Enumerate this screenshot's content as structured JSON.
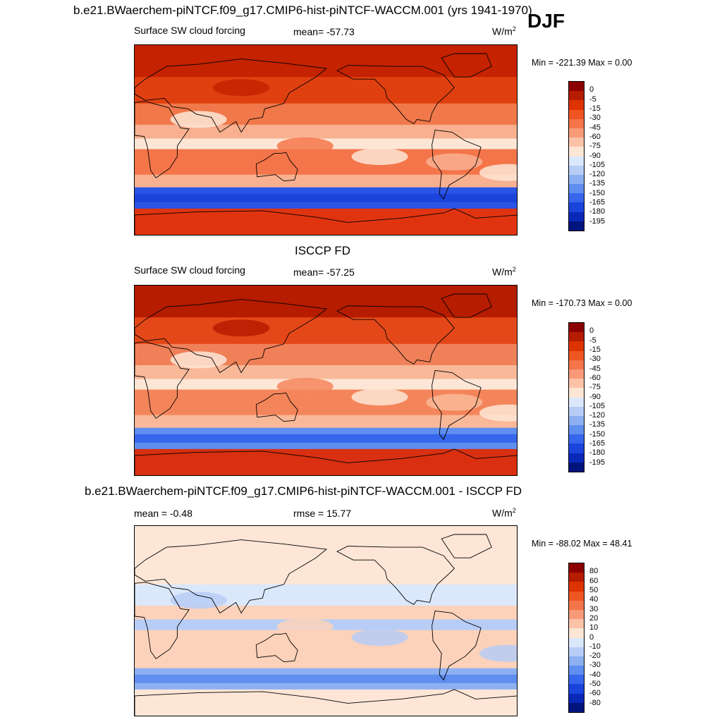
{
  "header": {
    "title": "b.e21.BWaerchem-piNTCF.f09_g17.CMIP6-hist-piNTCF-WACCM.001 (yrs 1941-1970)",
    "season": "DJF"
  },
  "panels": [
    {
      "id": "model",
      "title": "",
      "left_text": "Surface SW cloud forcing",
      "center_text": "mean= -57.73",
      "units": "W/m",
      "units_sup": "2",
      "minmax": "Min = -221.39 Max =   0.00",
      "colorbar": {
        "labels": [
          "0",
          "-5",
          "-15",
          "-30",
          "-45",
          "-60",
          "-75",
          "-90",
          "-105",
          "-120",
          "-135",
          "-150",
          "-165",
          "-180",
          "-195"
        ],
        "colors": [
          "#8b0000",
          "#b51c00",
          "#dd3300",
          "#ee5522",
          "#f4754a",
          "#f89a78",
          "#fcc2a8",
          "#fde6d6",
          "#dbe8fb",
          "#b7cdf6",
          "#8db0f2",
          "#5f8ef0",
          "#3666ec",
          "#1a44dc",
          "#0a28b8",
          "#00147e"
        ]
      },
      "shading": {
        "polar_north": "#c42200",
        "nh_mid": "#e04010",
        "subtrop": "#f0784a",
        "tropics": "#f8b090",
        "itcz": "#fde6d6",
        "sh_sub": "#f4754a",
        "so_band": "#2a55e6",
        "so_core": "#1a44dc",
        "antarctic": "#e03410"
      }
    },
    {
      "id": "obs",
      "title": "ISCCP FD",
      "left_text": "Surface SW cloud forcing",
      "center_text": "mean= -57.25",
      "units": "W/m",
      "units_sup": "2",
      "minmax": "Min = -170.73 Max =   0.00",
      "colorbar": {
        "labels": [
          "0",
          "-5",
          "-15",
          "-30",
          "-45",
          "-60",
          "-75",
          "-90",
          "-105",
          "-120",
          "-135",
          "-150",
          "-165",
          "-180",
          "-195"
        ],
        "colors": [
          "#8b0000",
          "#b51c00",
          "#dd3300",
          "#ee5522",
          "#f4754a",
          "#f89a78",
          "#fcc2a8",
          "#fde6d6",
          "#dbe8fb",
          "#b7cdf6",
          "#8db0f2",
          "#5f8ef0",
          "#3666ec",
          "#1a44dc",
          "#0a28b8",
          "#00147e"
        ]
      },
      "shading": {
        "polar_north": "#b51c00",
        "nh_mid": "#e44818",
        "subtrop": "#f08058",
        "tropics": "#f9b898",
        "itcz": "#fde6d6",
        "sh_sub": "#f4855a",
        "so_band": "#5f8ef0",
        "so_core": "#3666ec",
        "antarctic": "#d83010"
      }
    },
    {
      "id": "diff",
      "title": "b.e21.BWaerchem-piNTCF.f09_g17.CMIP6-hist-piNTCF-WACCM.001 - ISCCP FD",
      "left_text": "mean =  -0.48",
      "center_text": "rmse =  15.77",
      "units": "W/m",
      "units_sup": "2",
      "minmax": "Min = -88.02 Max =  48.41",
      "colorbar": {
        "labels": [
          "80",
          "60",
          "50",
          "40",
          "30",
          "20",
          "10",
          "0",
          "-10",
          "-20",
          "-30",
          "-40",
          "-50",
          "-60",
          "-80"
        ],
        "colors": [
          "#8b0000",
          "#b51c00",
          "#dd3300",
          "#ee5522",
          "#f4754a",
          "#f89a78",
          "#fcc2a8",
          "#fde6d6",
          "#dbe8fb",
          "#b7cdf6",
          "#8db0f2",
          "#5f8ef0",
          "#3666ec",
          "#1a44dc",
          "#0a28b8",
          "#00147e"
        ]
      },
      "shading": {
        "polar_north": "#fde6d6",
        "nh_mid": "#fde6d6",
        "subtrop": "#dbe8fb",
        "tropics": "#fcd2ba",
        "itcz": "#b7cdf6",
        "sh_sub": "#fcd2ba",
        "so_band": "#8db0f2",
        "so_core": "#5f8ef0",
        "antarctic": "#fde6d6"
      }
    }
  ]
}
